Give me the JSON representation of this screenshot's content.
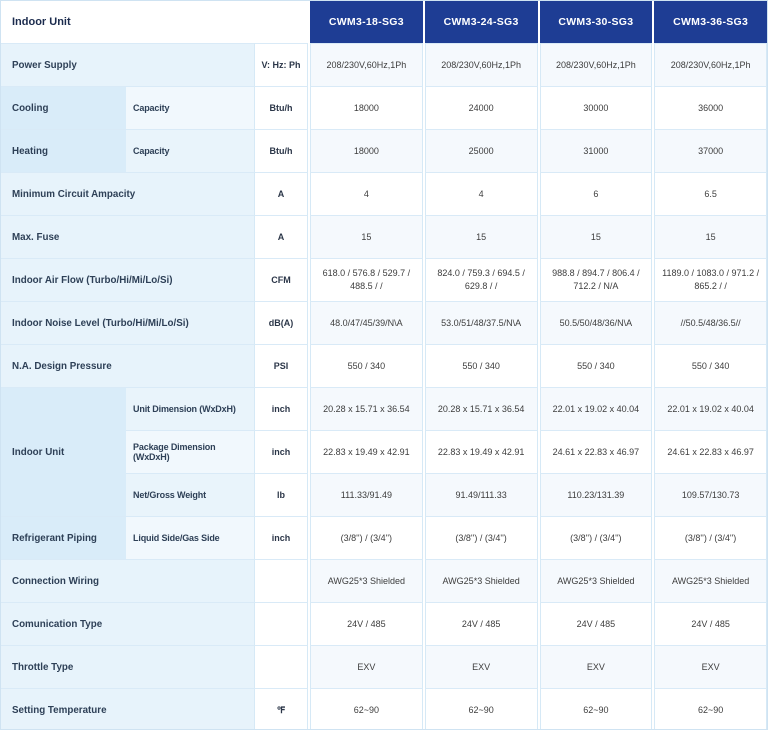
{
  "colors": {
    "header_bg": "#1e3d94",
    "header_text": "#ffffff",
    "group_cell_bg": "#d9ecf9",
    "label_cell_bg": "#e7f3fb",
    "row_tint": "#f5f9fd",
    "border": "#d6e9f6"
  },
  "table": {
    "corner_label": "Indoor Unit",
    "models": [
      "CWM3-18-SG3",
      "CWM3-24-SG3",
      "CWM3-30-SG3",
      "CWM3-36-SG3"
    ],
    "rows": [
      {
        "label": "Power Supply",
        "unit": "V: Hz: Ph",
        "values": [
          "208/230V,60Hz,1Ph",
          "208/230V,60Hz,1Ph",
          "208/230V,60Hz,1Ph",
          "208/230V,60Hz,1Ph"
        ]
      },
      {
        "group": "Cooling",
        "sub": "Capacity",
        "unit": "Btu/h",
        "values": [
          "18000",
          "24000",
          "30000",
          "36000"
        ]
      },
      {
        "group": "Heating",
        "sub": "Capacity",
        "unit": "Btu/h",
        "values": [
          "18000",
          "25000",
          "31000",
          "37000"
        ]
      },
      {
        "label": "Minimum Circuit Ampacity",
        "unit": "A",
        "values": [
          "4",
          "4",
          "6",
          "6.5"
        ]
      },
      {
        "label": "Max. Fuse",
        "unit": "A",
        "values": [
          "15",
          "15",
          "15",
          "15"
        ]
      },
      {
        "label": "Indoor Air Flow (Turbo/Hi/Mi/Lo/Si)",
        "unit": "CFM",
        "values": [
          "618.0 / 576.8 / 529.7 / 488.5 / /",
          "824.0 / 759.3 / 694.5 / 629.8 / /",
          "988.8 / 894.7 / 806.4 / 712.2 / N/A",
          "1189.0 / 1083.0 / 971.2 / 865.2 / /"
        ]
      },
      {
        "label": "Indoor Noise Level (Turbo/Hi/Mi/Lo/Si)",
        "unit": "dB(A)",
        "values": [
          "48.0/47/45/39/N\\A",
          "53.0/51/48/37.5/N\\A",
          "50.5/50/48/36/N\\A",
          "//50.5/48/36.5//"
        ]
      },
      {
        "label": "N.A. Design Pressure",
        "unit": "PSI",
        "values": [
          "550 / 340",
          "550 / 340",
          "550 / 340",
          "550 / 340"
        ]
      },
      {
        "group": "Indoor Unit",
        "sub": "Unit Dimension (WxDxH)",
        "unit": "inch",
        "values": [
          "20.28 x 15.71 x 36.54",
          "20.28 x 15.71 x 36.54",
          "22.01 x 19.02 x 40.04",
          "22.01 x 19.02 x 40.04"
        ]
      },
      {
        "group": "",
        "sub": "Package Dimension (WxDxH)",
        "unit": "inch",
        "values": [
          "22.83 x 19.49 x 42.91",
          "22.83 x 19.49 x 42.91",
          "24.61 x 22.83 x 46.97",
          "24.61 x 22.83 x 46.97"
        ]
      },
      {
        "group": "",
        "sub": "Net/Gross Weight",
        "unit": "lb",
        "values": [
          "111.33/91.49",
          "91.49/111.33",
          "110.23/131.39",
          "109.57/130.73"
        ]
      },
      {
        "group": "Refrigerant Piping",
        "sub": "Liquid Side/Gas Side",
        "unit": "inch",
        "values": [
          "(3/8'') / (3/4'')",
          "(3/8'') / (3/4'')",
          "(3/8'') / (3/4'')",
          "(3/8'') / (3/4'')"
        ]
      },
      {
        "label": "Connection Wiring",
        "unit": "",
        "values": [
          "AWG25*3 Shielded",
          "AWG25*3 Shielded",
          "AWG25*3 Shielded",
          "AWG25*3 Shielded"
        ]
      },
      {
        "label": "Comunication Type",
        "unit": "",
        "values": [
          "24V / 485",
          "24V / 485",
          "24V / 485",
          "24V / 485"
        ]
      },
      {
        "label": "Throttle Type",
        "unit": "",
        "values": [
          "EXV",
          "EXV",
          "EXV",
          "EXV"
        ]
      },
      {
        "label": "Setting Temperature",
        "unit": "℉",
        "values": [
          "62~90",
          "62~90",
          "62~90",
          "62~90"
        ]
      }
    ]
  }
}
